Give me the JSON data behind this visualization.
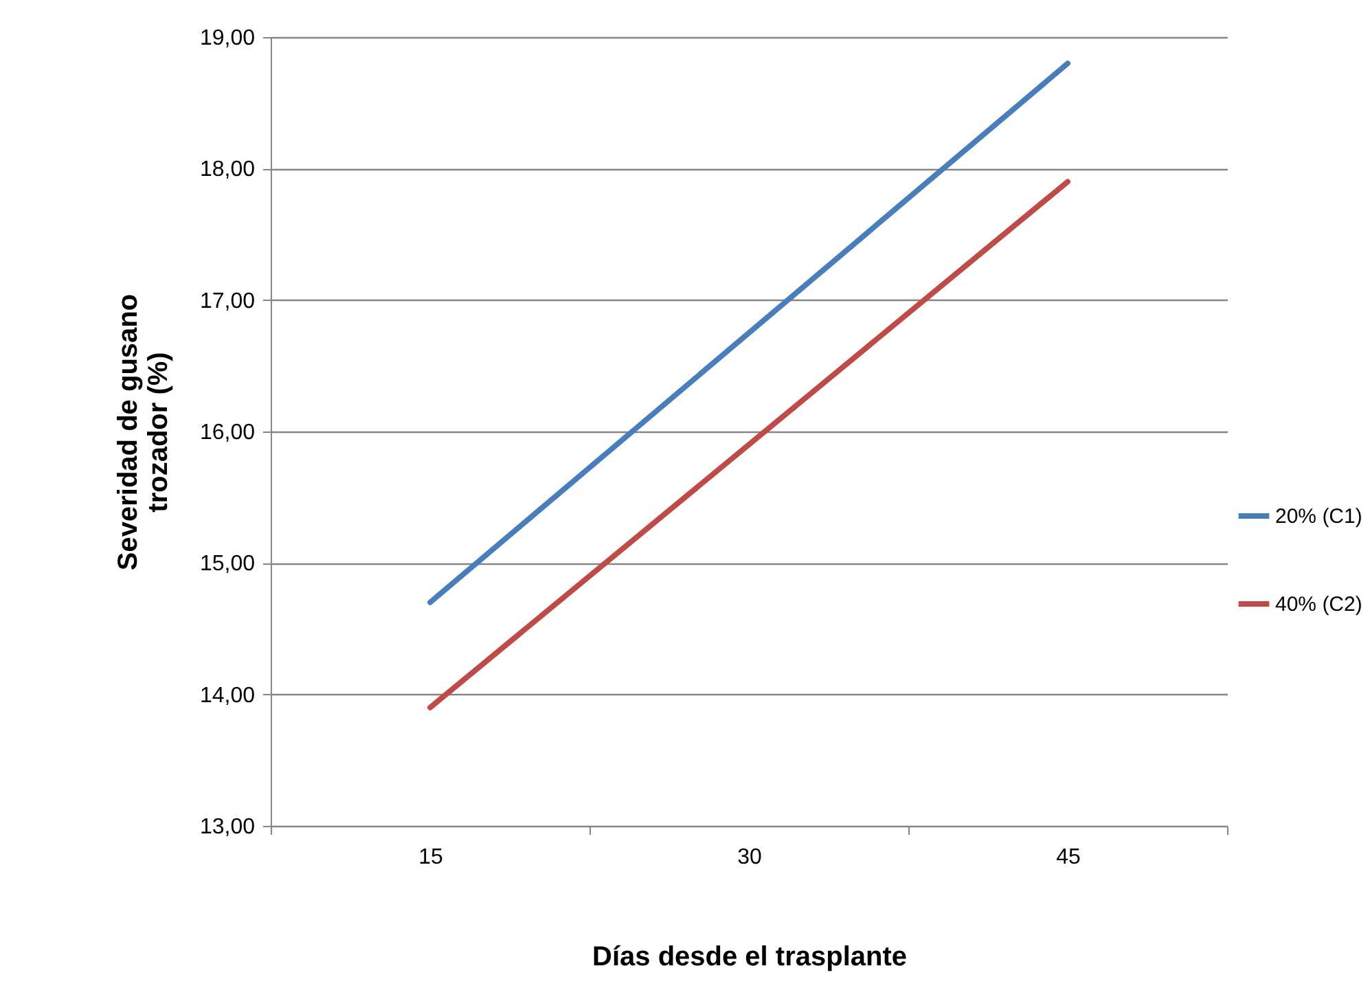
{
  "chart_data": {
    "type": "line",
    "xlabel": "Días desde el trasplante",
    "ylabel": "Severidad de gusano trozador (%)",
    "categories": [
      "15",
      "30",
      "45"
    ],
    "series": [
      {
        "name": "20% (C1)",
        "color": "#4a7ebb",
        "values": [
          14.7,
          null,
          18.8
        ]
      },
      {
        "name": "40% (C2)",
        "color": "#be4b48",
        "values": [
          13.9,
          null,
          17.9
        ]
      }
    ],
    "ylim": [
      13,
      19
    ],
    "yticks": [
      {
        "value": 13,
        "label": "13,00"
      },
      {
        "value": 14,
        "label": "14,00"
      },
      {
        "value": 15,
        "label": "15,00"
      },
      {
        "value": 16,
        "label": "16,00"
      },
      {
        "value": 17,
        "label": "17,00"
      },
      {
        "value": 18,
        "label": "18,00"
      },
      {
        "value": 19,
        "label": "19,00"
      }
    ],
    "grid": "y",
    "legend": "right",
    "marker": "none",
    "line_style": "solid"
  }
}
